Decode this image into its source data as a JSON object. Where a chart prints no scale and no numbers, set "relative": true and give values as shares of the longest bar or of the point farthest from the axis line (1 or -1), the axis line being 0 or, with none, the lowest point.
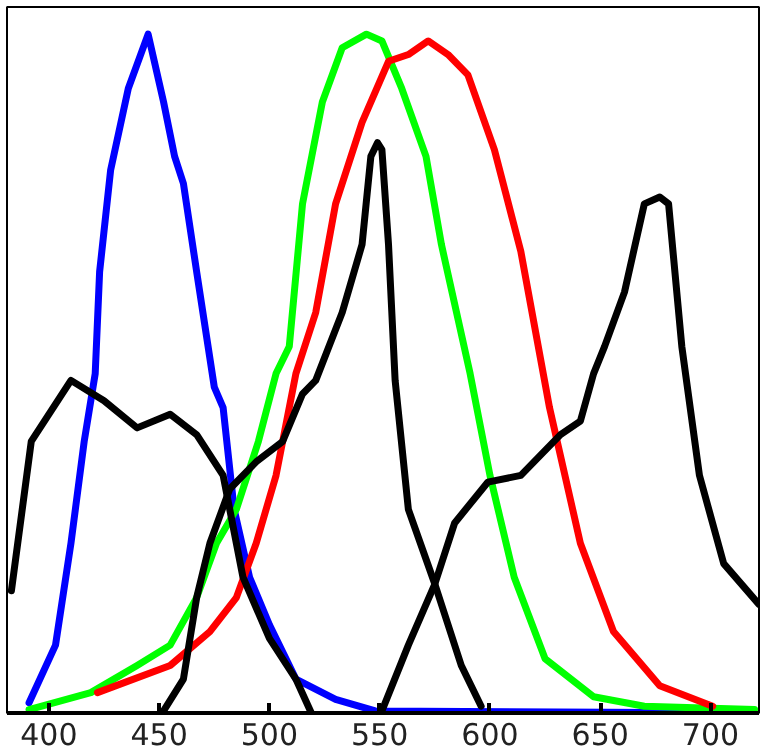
{
  "chart_data": {
    "type": "line",
    "relative": true,
    "tick_labels": "x",
    "grid": false,
    "line_style": "solid",
    "marker": "none",
    "xlim": [
      381,
      722
    ],
    "xticks": [
      400,
      450,
      500,
      550,
      600,
      650,
      700
    ],
    "series": [
      {
        "color": "#0000ff",
        "x": [
          391,
          403,
          410,
          416,
          421,
          423,
          428,
          436,
          445,
          452,
          457,
          461,
          467,
          475,
          479,
          484,
          491,
          500,
          512,
          530,
          548,
          720
        ],
        "values": [
          0.015,
          0.1,
          0.25,
          0.4,
          0.5,
          0.65,
          0.8,
          0.92,
          1.0,
          0.9,
          0.82,
          0.78,
          0.65,
          0.48,
          0.45,
          0.3,
          0.2,
          0.13,
          0.05,
          0.02,
          0.003,
          0
        ]
      },
      {
        "color": "#00ff00",
        "x": [
          391,
          419,
          440,
          455,
          467,
          476,
          485,
          495,
          503,
          509,
          515,
          524,
          533,
          544,
          551,
          560,
          571,
          578,
          591,
          600,
          611,
          625,
          647,
          670,
          720
        ],
        "values": [
          0.005,
          0.03,
          0.07,
          0.1,
          0.17,
          0.25,
          0.3,
          0.4,
          0.5,
          0.54,
          0.75,
          0.9,
          0.98,
          1.0,
          0.99,
          0.92,
          0.82,
          0.69,
          0.5,
          0.35,
          0.2,
          0.08,
          0.024,
          0.01,
          0.005
        ]
      },
      {
        "color": "#ff0000",
        "x": [
          422,
          455,
          473,
          485,
          494,
          503,
          512,
          521,
          530,
          542,
          554,
          563,
          572,
          581,
          590,
          602,
          614,
          627,
          641,
          656,
          677,
          701
        ],
        "values": [
          0.03,
          0.07,
          0.12,
          0.17,
          0.25,
          0.35,
          0.5,
          0.59,
          0.75,
          0.87,
          0.96,
          0.97,
          0.99,
          0.97,
          0.94,
          0.83,
          0.68,
          0.45,
          0.25,
          0.12,
          0.04,
          0.01
        ]
      },
      {
        "color": "#000000",
        "x": [
          383,
          392,
          410,
          425,
          440,
          455,
          467,
          479,
          488,
          500,
          512,
          519
        ],
        "values": [
          0.18,
          0.4,
          0.49,
          0.46,
          0.42,
          0.44,
          0.41,
          0.35,
          0.2,
          0.11,
          0.05,
          0
        ]
      },
      {
        "color": "#000000",
        "x": [
          452,
          461,
          467,
          473,
          482,
          494,
          506,
          515,
          521,
          533,
          542,
          546,
          549,
          551,
          554,
          557,
          563,
          575,
          587,
          596
        ],
        "values": [
          0.003,
          0.05,
          0.17,
          0.25,
          0.33,
          0.37,
          0.4,
          0.47,
          0.49,
          0.59,
          0.69,
          0.82,
          0.84,
          0.83,
          0.69,
          0.49,
          0.3,
          0.19,
          0.07,
          0.01
        ]
      },
      {
        "color": "#000000",
        "x": [
          551,
          563,
          575,
          584,
          599,
          614,
          632,
          641,
          647,
          652,
          661,
          670,
          677,
          681,
          687,
          695,
          706,
          722
        ],
        "values": [
          0.003,
          0.1,
          0.19,
          0.28,
          0.34,
          0.35,
          0.41,
          0.43,
          0.5,
          0.54,
          0.62,
          0.75,
          0.76,
          0.75,
          0.54,
          0.35,
          0.22,
          0.16
        ]
      }
    ]
  }
}
